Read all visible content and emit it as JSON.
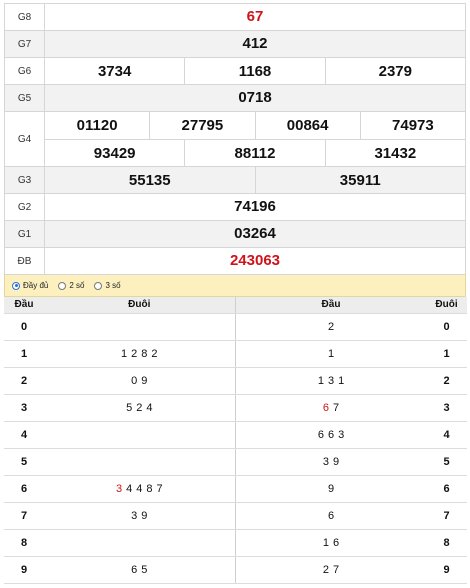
{
  "prizes": {
    "g8": {
      "label": "G8",
      "numbers": [
        "67"
      ]
    },
    "g7": {
      "label": "G7",
      "numbers": [
        "412"
      ]
    },
    "g6": {
      "label": "G6",
      "numbers": [
        "3734",
        "1168",
        "2379"
      ]
    },
    "g5": {
      "label": "G5",
      "numbers": [
        "0718"
      ]
    },
    "g4": {
      "label": "G4",
      "row1": [
        "01120",
        "27795",
        "00864",
        "74973"
      ],
      "row2": [
        "93429",
        "88112",
        "31432"
      ]
    },
    "g3": {
      "label": "G3",
      "numbers": [
        "55135",
        "35911"
      ]
    },
    "g2": {
      "label": "G2",
      "numbers": [
        "74196"
      ]
    },
    "g1": {
      "label": "G1",
      "numbers": [
        "03264"
      ]
    },
    "db": {
      "label": "ĐB",
      "numbers": [
        "243063"
      ]
    }
  },
  "options": {
    "full": "Đầy đủ",
    "two": "2 số",
    "three": "3 số",
    "selected": "full"
  },
  "loto_left": {
    "head_col": "Đầu",
    "tail_col": "Đuôi",
    "rows": [
      {
        "head": "0",
        "tails": []
      },
      {
        "head": "1",
        "tails": [
          "1",
          "2",
          "8",
          "2"
        ]
      },
      {
        "head": "2",
        "tails": [
          "0",
          "9"
        ]
      },
      {
        "head": "3",
        "tails": [
          "5",
          "2",
          "4"
        ]
      },
      {
        "head": "4",
        "tails": []
      },
      {
        "head": "5",
        "tails": []
      },
      {
        "head": "6",
        "tails": [
          "3",
          "4",
          "4",
          "8",
          "7"
        ],
        "highlight_index": 0
      },
      {
        "head": "7",
        "tails": [
          "3",
          "9"
        ]
      },
      {
        "head": "8",
        "tails": []
      },
      {
        "head": "9",
        "tails": [
          "6",
          "5"
        ]
      }
    ]
  },
  "loto_right": {
    "head_col": "Đầu",
    "tail_col": "Đuôi",
    "rows": [
      {
        "tail": "0",
        "heads": [
          "2"
        ]
      },
      {
        "tail": "1",
        "heads": [
          "1"
        ]
      },
      {
        "tail": "2",
        "heads": [
          "1",
          "3",
          "1"
        ]
      },
      {
        "tail": "3",
        "heads": [
          "6",
          "7"
        ],
        "highlight_index": 0
      },
      {
        "tail": "4",
        "heads": [
          "6",
          "6",
          "3"
        ]
      },
      {
        "tail": "5",
        "heads": [
          "3",
          "9"
        ]
      },
      {
        "tail": "6",
        "heads": [
          "9"
        ]
      },
      {
        "tail": "7",
        "heads": [
          "6"
        ]
      },
      {
        "tail": "8",
        "heads": [
          "1",
          "6"
        ]
      },
      {
        "tail": "9",
        "heads": [
          "2",
          "7"
        ]
      }
    ]
  },
  "colors": {
    "accent_red": "#d0131b",
    "option_bar": "#fdf0bf",
    "radio_selected": "#2a6fd6"
  }
}
